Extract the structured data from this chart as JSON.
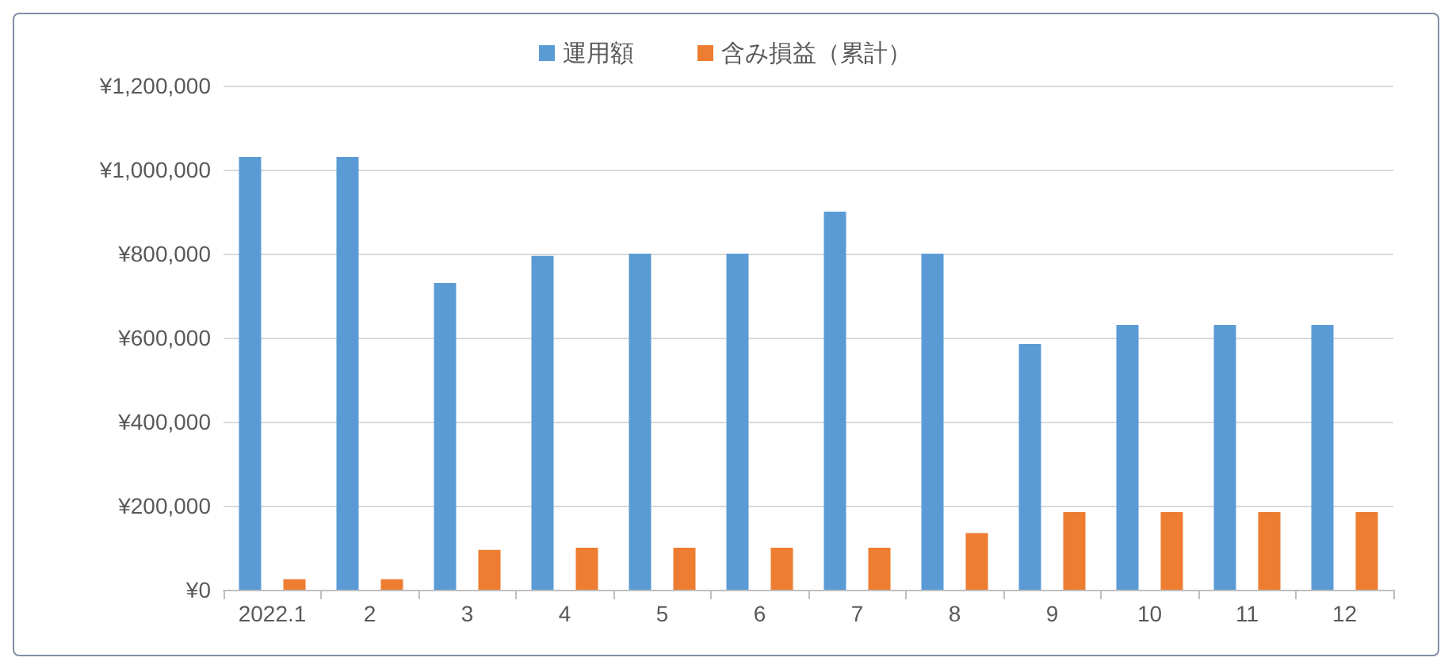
{
  "chart_data": {
    "type": "bar",
    "categories": [
      "2022.1",
      "2",
      "3",
      "4",
      "5",
      "6",
      "7",
      "8",
      "9",
      "10",
      "11",
      "12"
    ],
    "series": [
      {
        "name": "運用額",
        "color": "#5b9bd5",
        "values": [
          1030000,
          1030000,
          730000,
          795000,
          800000,
          800000,
          900000,
          800000,
          585000,
          630000,
          630000,
          630000
        ]
      },
      {
        "name": "含み損益（累計）",
        "color": "#ed7d31",
        "values": [
          25000,
          25000,
          95000,
          100000,
          100000,
          100000,
          100000,
          135000,
          185000,
          185000,
          185000,
          185000
        ]
      }
    ],
    "ylim": [
      0,
      1200000
    ],
    "yticks": [
      {
        "value": 0,
        "label": "¥0"
      },
      {
        "value": 200000,
        "label": "¥200,000"
      },
      {
        "value": 400000,
        "label": "¥400,000"
      },
      {
        "value": 600000,
        "label": "¥600,000"
      },
      {
        "value": 800000,
        "label": "¥800,000"
      },
      {
        "value": 1000000,
        "label": "¥1,000,000"
      },
      {
        "value": 1200000,
        "label": "¥1,200,000"
      }
    ],
    "grid": "y",
    "legend": "top"
  }
}
